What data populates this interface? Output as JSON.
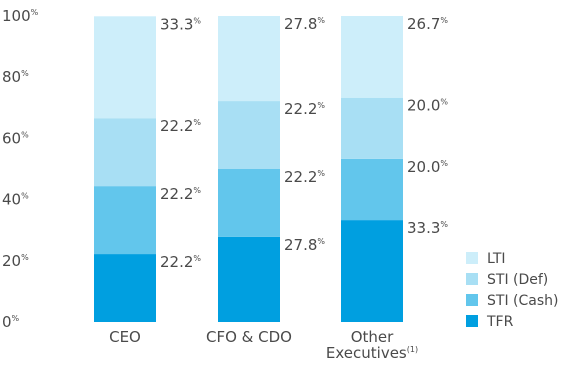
{
  "chart_data": {
    "type": "bar",
    "stacked": true,
    "categories": [
      {
        "label": "CEO",
        "label_lines": [
          "CEO"
        ]
      },
      {
        "label": "CFO & CDO",
        "label_lines": [
          "CFO & CDO"
        ]
      },
      {
        "label": "Other Executives(1)",
        "label_lines": [
          "Other",
          "Executives"
        ],
        "footnote": "(1)"
      }
    ],
    "series": [
      {
        "name": "TFR",
        "color": "#009fe0",
        "values": [
          22.2,
          27.8,
          33.3
        ]
      },
      {
        "name": "STI (Cash)",
        "color": "#62c6ec",
        "values": [
          22.2,
          22.2,
          20.0
        ]
      },
      {
        "name": "STI (Def)",
        "color": "#a8dff4",
        "values": [
          22.2,
          22.2,
          20.0
        ]
      },
      {
        "name": "LTI",
        "color": "#cdeefa",
        "values": [
          33.3,
          27.8,
          26.7
        ]
      }
    ],
    "value_labels": [
      [
        "22.2",
        "22.2",
        "22.2",
        "33.3"
      ],
      [
        "27.8",
        "22.2",
        "22.2",
        "27.8"
      ],
      [
        "33.3",
        "20.0",
        "20.0",
        "26.7"
      ]
    ],
    "value_suffix": "%",
    "y_ticks": [
      {
        "value": 0,
        "label": "0",
        "suffix": "%"
      },
      {
        "value": 20,
        "label": "20",
        "suffix": "%"
      },
      {
        "value": 40,
        "label": "40",
        "suffix": "%"
      },
      {
        "value": 60,
        "label": "60",
        "suffix": "%"
      },
      {
        "value": 80,
        "label": "80",
        "suffix": "%"
      },
      {
        "value": 100,
        "label": "100",
        "suffix": "%"
      }
    ],
    "ylim": [
      0,
      100
    ],
    "grid": false,
    "legend": {
      "position": "right-bottom",
      "order": [
        "LTI",
        "STI (Def)",
        "STI (Cash)",
        "TFR"
      ]
    },
    "text_color": "#4a4a4a"
  }
}
